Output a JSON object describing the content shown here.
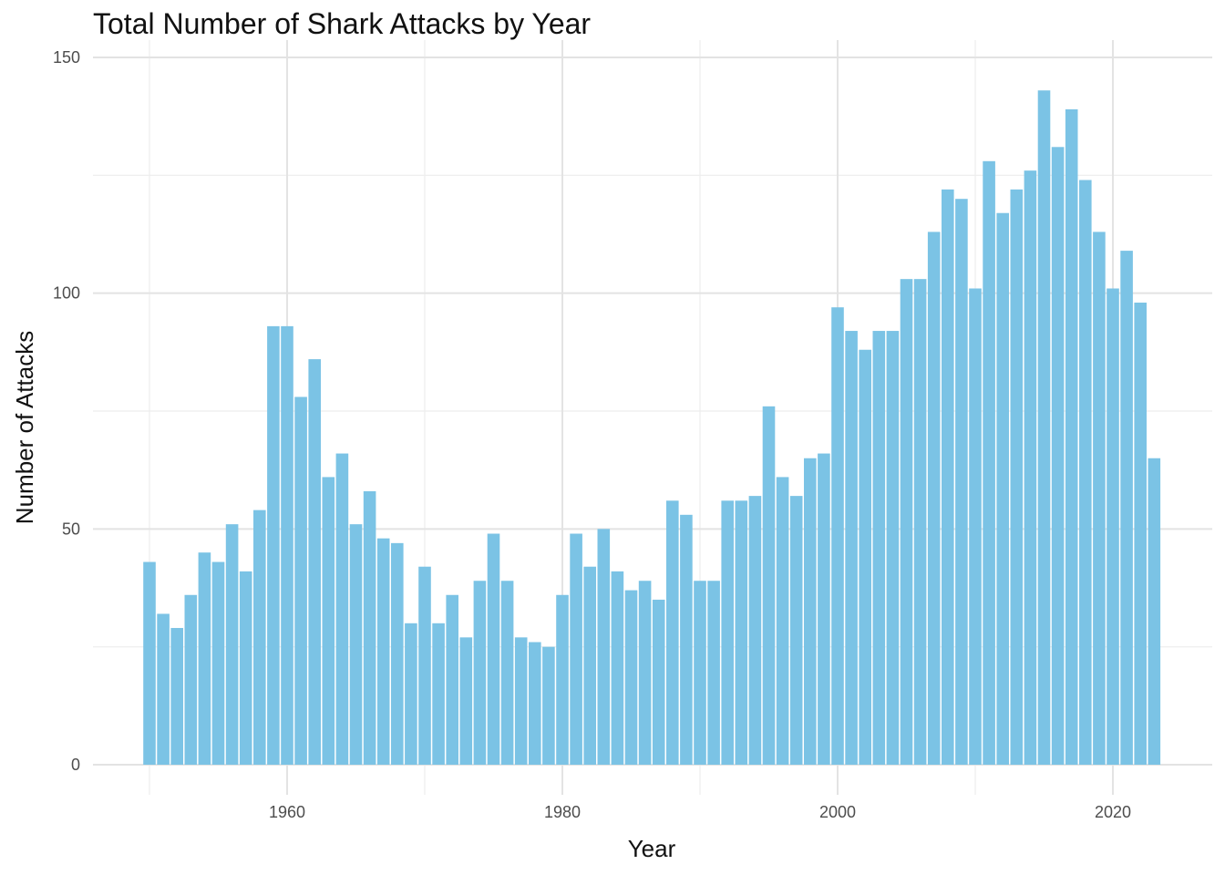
{
  "chart_data": {
    "type": "bar",
    "title": "Total Number of Shark Attacks by Year",
    "xlabel": "Year",
    "ylabel": "Number of Attacks",
    "x": [
      1950,
      1951,
      1952,
      1953,
      1954,
      1955,
      1956,
      1957,
      1958,
      1959,
      1960,
      1961,
      1962,
      1963,
      1964,
      1965,
      1966,
      1967,
      1968,
      1969,
      1970,
      1971,
      1972,
      1973,
      1974,
      1975,
      1976,
      1977,
      1978,
      1979,
      1980,
      1981,
      1982,
      1983,
      1984,
      1985,
      1986,
      1987,
      1988,
      1989,
      1990,
      1991,
      1992,
      1993,
      1994,
      1995,
      1996,
      1997,
      1998,
      1999,
      2000,
      2001,
      2002,
      2003,
      2004,
      2005,
      2006,
      2007,
      2008,
      2009,
      2010,
      2011,
      2012,
      2013,
      2014,
      2015,
      2016,
      2017,
      2018,
      2019,
      2020,
      2021,
      2022,
      2023
    ],
    "values": [
      43,
      32,
      29,
      36,
      45,
      43,
      51,
      41,
      54,
      93,
      93,
      78,
      86,
      61,
      66,
      51,
      58,
      48,
      47,
      30,
      42,
      30,
      36,
      27,
      39,
      49,
      39,
      27,
      26,
      25,
      36,
      49,
      42,
      50,
      41,
      37,
      39,
      35,
      56,
      53,
      39,
      39,
      56,
      56,
      57,
      76,
      61,
      57,
      65,
      66,
      97,
      92,
      88,
      92,
      92,
      103,
      103,
      113,
      122,
      120,
      101,
      128,
      117,
      122,
      126,
      143,
      131,
      139,
      124,
      113,
      101,
      109,
      98,
      65
    ],
    "xlim": [
      1949.5,
      2027.0
    ],
    "ylim": [
      0,
      150
    ],
    "x_ticks": [
      "1960",
      "1980",
      "2000",
      "2020"
    ],
    "y_ticks": [
      "0",
      "50",
      "100",
      "150"
    ],
    "bar_color": "#7BC3E5",
    "grid": true,
    "legend": "none"
  }
}
